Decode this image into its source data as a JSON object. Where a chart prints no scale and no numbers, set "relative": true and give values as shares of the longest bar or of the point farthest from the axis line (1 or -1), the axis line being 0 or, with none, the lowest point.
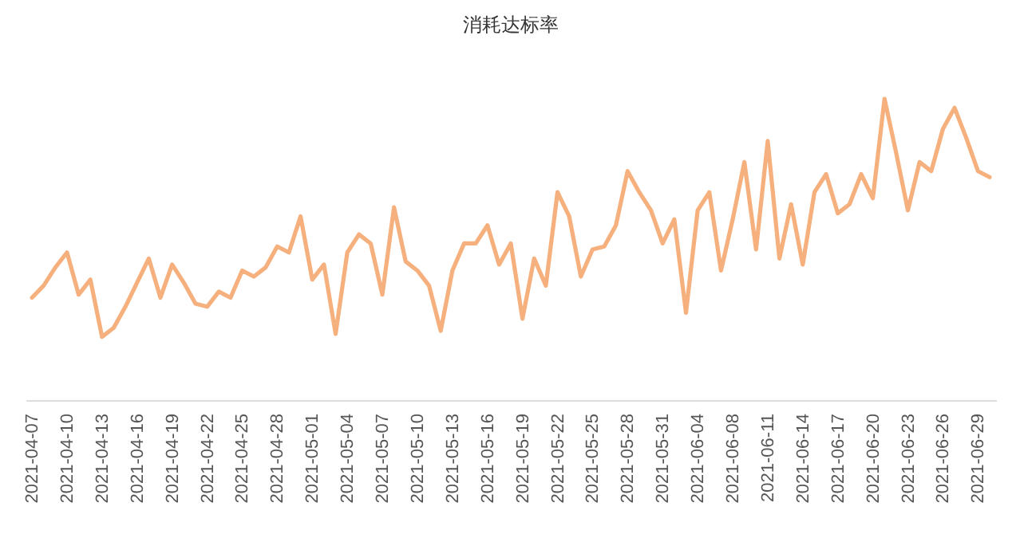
{
  "chart_data": {
    "type": "line",
    "title": "消耗达标率",
    "relative": true,
    "categories": [
      "2021-04-07",
      null,
      null,
      "2021-04-10",
      null,
      null,
      "2021-04-13",
      null,
      null,
      "2021-04-16",
      null,
      null,
      "2021-04-19",
      null,
      null,
      "2021-04-22",
      null,
      null,
      "2021-04-25",
      null,
      null,
      "2021-04-28",
      null,
      null,
      "2021-05-01",
      null,
      null,
      "2021-05-04",
      null,
      null,
      "2021-05-07",
      null,
      null,
      "2021-05-10",
      null,
      null,
      "2021-05-13",
      null,
      null,
      "2021-05-16",
      null,
      null,
      "2021-05-19",
      null,
      null,
      "2021-05-22",
      null,
      null,
      "2021-05-25",
      null,
      null,
      "2021-05-28",
      null,
      null,
      "2021-05-31",
      null,
      null,
      "2021-06-04",
      null,
      null,
      "2021-06-08",
      null,
      null,
      "2021-06-11",
      null,
      null,
      "2021-06-14",
      null,
      null,
      "2021-06-17",
      null,
      null,
      "2021-06-20",
      null,
      null,
      "2021-06-23",
      null,
      null,
      "2021-06-26",
      null,
      null,
      "2021-06-29",
      null
    ],
    "series": [
      {
        "color": "#f5b07d",
        "values": [
          0.34,
          0.38,
          0.44,
          0.49,
          0.35,
          0.4,
          0.21,
          0.24,
          0.31,
          0.39,
          0.47,
          0.34,
          0.45,
          0.39,
          0.32,
          0.31,
          0.36,
          0.34,
          0.43,
          0.41,
          0.44,
          0.51,
          0.49,
          0.61,
          0.4,
          0.45,
          0.22,
          0.49,
          0.55,
          0.52,
          0.35,
          0.64,
          0.46,
          0.43,
          0.38,
          0.23,
          0.43,
          0.52,
          0.52,
          0.58,
          0.45,
          0.52,
          0.27,
          0.47,
          0.38,
          0.69,
          0.61,
          0.41,
          0.5,
          0.51,
          0.58,
          0.76,
          0.69,
          0.63,
          0.52,
          0.6,
          0.29,
          0.63,
          0.69,
          0.43,
          0.6,
          0.79,
          0.5,
          0.86,
          0.47,
          0.65,
          0.45,
          0.69,
          0.75,
          0.62,
          0.65,
          0.75,
          0.67,
          1,
          0.82,
          0.63,
          0.79,
          0.76,
          0.9,
          0.97,
          0.87,
          0.76,
          0.74
        ]
      }
    ]
  }
}
